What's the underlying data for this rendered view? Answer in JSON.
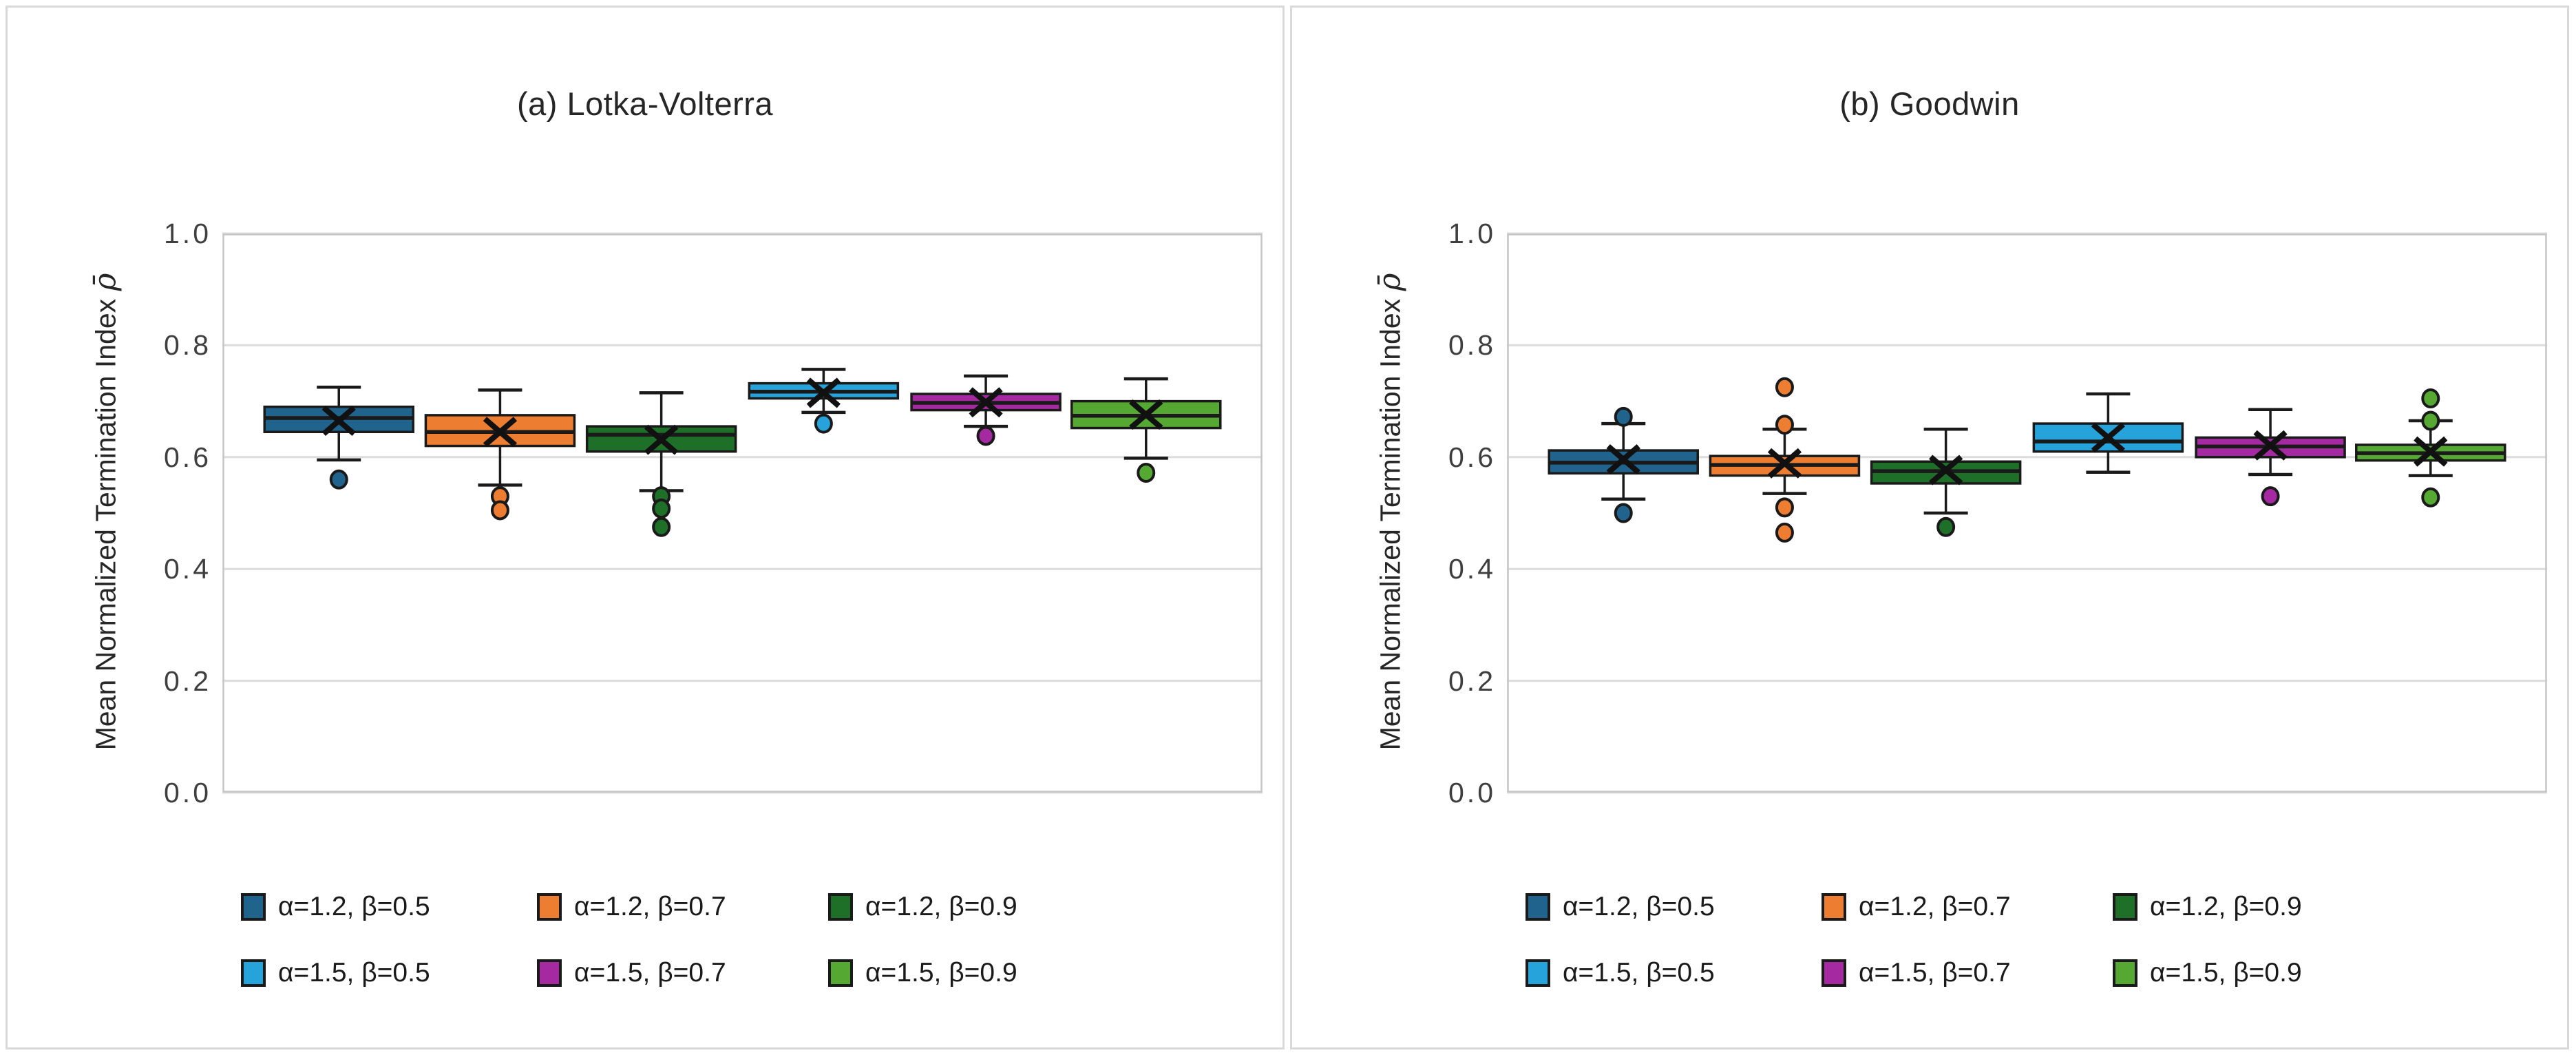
{
  "figure": {
    "background": "#FFFFFF",
    "panel_border_color": "#D9D9D9",
    "grid_color": "#DCDCDC",
    "plot_border_color": "#C6C6C6",
    "box_edge_color": "#1A1A1A",
    "title_color": "#262626",
    "tick_color": "#3F3F3F"
  },
  "chart_data": [
    {
      "type": "box",
      "title": "(a) Lotka-Volterra",
      "ylabel": "Mean Normalized Termination Index ρ̄",
      "ylabel_prefix": "Mean Normalized Termination Index",
      "ylabel_symbol": "ρ̄",
      "xlabel": "",
      "ylim": [
        0.0,
        1.0
      ],
      "yticks": [
        1.0,
        0.8,
        0.6,
        0.4,
        0.2,
        0.0
      ],
      "ytick_labels": [
        "1.0",
        "0.8",
        "0.6",
        "0.4",
        "0.2",
        "0.0"
      ],
      "grid": true,
      "legend_position": "bottom",
      "series": [
        {
          "name": "α=1.2, β=0.5",
          "color": "#20638C",
          "whisker_low": 0.595,
          "q1": 0.645,
          "median": 0.67,
          "q3": 0.69,
          "whisker_high": 0.725,
          "mean": 0.665,
          "outliers": [
            0.56
          ]
        },
        {
          "name": "α=1.2, β=0.7",
          "color": "#ED7D31",
          "whisker_low": 0.55,
          "q1": 0.62,
          "median": 0.645,
          "q3": 0.675,
          "whisker_high": 0.72,
          "mean": 0.645,
          "outliers": [
            0.53,
            0.505
          ]
        },
        {
          "name": "α=1.2, β=0.9",
          "color": "#1E6F28",
          "whisker_low": 0.54,
          "q1": 0.61,
          "median": 0.64,
          "q3": 0.655,
          "whisker_high": 0.715,
          "mean": 0.631,
          "outliers": [
            0.53,
            0.508,
            0.475
          ]
        },
        {
          "name": "α=1.5, β=0.5",
          "color": "#27A3DC",
          "whisker_low": 0.68,
          "q1": 0.705,
          "median": 0.717,
          "q3": 0.732,
          "whisker_high": 0.757,
          "mean": 0.715,
          "outliers": [
            0.66
          ]
        },
        {
          "name": "α=1.5, β=0.7",
          "color": "#A52AA2",
          "whisker_low": 0.655,
          "q1": 0.684,
          "median": 0.697,
          "q3": 0.713,
          "whisker_high": 0.745,
          "mean": 0.698,
          "outliers": [
            0.638
          ]
        },
        {
          "name": "α=1.5, β=0.9",
          "color": "#55A832",
          "whisker_low": 0.598,
          "q1": 0.652,
          "median": 0.674,
          "q3": 0.7,
          "whisker_high": 0.74,
          "mean": 0.676,
          "outliers": [
            0.572
          ]
        }
      ]
    },
    {
      "type": "box",
      "title": "(b) Goodwin",
      "ylabel": "Mean Normalized Termination Index ρ̄",
      "ylabel_prefix": "Mean Normalized Termination Index",
      "ylabel_symbol": "ρ̄",
      "xlabel": "",
      "ylim": [
        0.0,
        1.0
      ],
      "yticks": [
        1.0,
        0.8,
        0.6,
        0.4,
        0.2,
        0.0
      ],
      "ytick_labels": [
        "1.0",
        "0.8",
        "0.6",
        "0.4",
        "0.2",
        "0.0"
      ],
      "grid": true,
      "legend_position": "bottom",
      "series": [
        {
          "name": "α=1.2, β=0.5",
          "color": "#20638C",
          "whisker_low": 0.525,
          "q1": 0.571,
          "median": 0.59,
          "q3": 0.612,
          "whisker_high": 0.66,
          "mean": 0.596,
          "outliers": [
            0.672,
            0.5
          ]
        },
        {
          "name": "α=1.2, β=0.7",
          "color": "#ED7D31",
          "whisker_low": 0.535,
          "q1": 0.567,
          "median": 0.586,
          "q3": 0.602,
          "whisker_high": 0.65,
          "mean": 0.589,
          "outliers": [
            0.725,
            0.658,
            0.51,
            0.465
          ]
        },
        {
          "name": "α=1.2, β=0.9",
          "color": "#1E6F28",
          "whisker_low": 0.5,
          "q1": 0.553,
          "median": 0.575,
          "q3": 0.592,
          "whisker_high": 0.65,
          "mean": 0.577,
          "outliers": [
            0.475
          ]
        },
        {
          "name": "α=1.5, β=0.5",
          "color": "#27A3DC",
          "whisker_low": 0.573,
          "q1": 0.61,
          "median": 0.628,
          "q3": 0.66,
          "whisker_high": 0.713,
          "mean": 0.635,
          "outliers": []
        },
        {
          "name": "α=1.5, β=0.7",
          "color": "#A52AA2",
          "whisker_low": 0.569,
          "q1": 0.6,
          "median": 0.619,
          "q3": 0.635,
          "whisker_high": 0.685,
          "mean": 0.621,
          "outliers": [
            0.53
          ]
        },
        {
          "name": "α=1.5, β=0.9",
          "color": "#55A832",
          "whisker_low": 0.567,
          "q1": 0.594,
          "median": 0.607,
          "q3": 0.622,
          "whisker_high": 0.665,
          "mean": 0.61,
          "outliers": [
            0.705,
            0.665,
            0.528
          ]
        }
      ]
    }
  ]
}
